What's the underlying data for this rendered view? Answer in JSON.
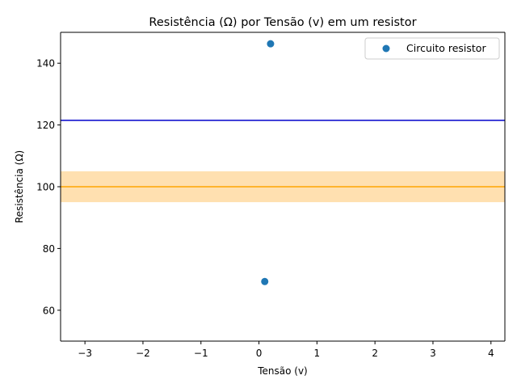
{
  "chart_data": {
    "type": "scatter",
    "title": "Resistência (Ω) por Tensão (v) em um resistor",
    "xlabel": "Tensão (v)",
    "ylabel": "Resistência (Ω)",
    "xlim": [
      -3.42,
      4.24
    ],
    "ylim": [
      50,
      150
    ],
    "xticks": [
      -3,
      -2,
      -1,
      0,
      1,
      2,
      3,
      4
    ],
    "yticks": [
      60,
      80,
      100,
      120,
      140
    ],
    "grid": false,
    "legend_position": "top-right",
    "series": [
      {
        "name": "Circuito resistor",
        "color": "#1f77b4",
        "points": [
          {
            "x": 0.1,
            "y": 69.3
          },
          {
            "x": 0.2,
            "y": 146.3
          }
        ]
      }
    ],
    "reference_lines": [
      {
        "y": 121.5,
        "color": "#0000cc"
      },
      {
        "y": 100,
        "color": "#ffa500"
      }
    ],
    "band": {
      "y_from": 95,
      "y_to": 105,
      "color": "#ffe0b0"
    }
  }
}
